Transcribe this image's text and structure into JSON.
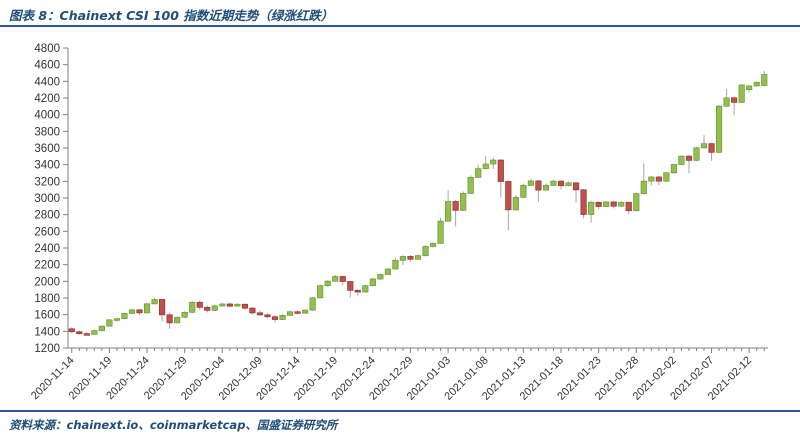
{
  "header": {
    "title": "图表 8：Chainext CSI 100 指数近期走势（绿涨红跌）"
  },
  "footer": {
    "source": "资料来源：chainext.io、coinmarketcap、国盛证券研究所"
  },
  "colors": {
    "title_blue": "#1F4E79",
    "rule_blue": "#2F5597",
    "up_green": "#92C050",
    "up_green_border": "#6E9A36",
    "down_red": "#C0504D",
    "down_red_border": "#943634",
    "wick_gray": "#A6A6A6",
    "axis_gray": "#808080",
    "label_gray": "#333333"
  },
  "chart_data": {
    "type": "candlestick",
    "title": "Chainext CSI 100 指数近期走势",
    "legend_note": "绿涨红跌 (green = up, red = down)",
    "grid": "off",
    "ylim": [
      1200,
      4800
    ],
    "ytick_step": 200,
    "y_tick_labels": [
      "1200",
      "1400",
      "1600",
      "1800",
      "2000",
      "2200",
      "2400",
      "2600",
      "2800",
      "3000",
      "3200",
      "3400",
      "3600",
      "3800",
      "4000",
      "4200",
      "4400",
      "4600",
      "4800"
    ],
    "x_label_every": 5,
    "x_tick_labels": [
      "2020-11-14",
      "2020-11-19",
      "2020-11-24",
      "2020-11-29",
      "2020-12-04",
      "2020-12-09",
      "2020-12-14",
      "2020-12-19",
      "2020-12-24",
      "2020-12-29",
      "2021-01-03",
      "2021-01-08",
      "2021-01-13",
      "2021-01-18",
      "2021-01-23",
      "2021-01-28",
      "2021-02-02",
      "2021-02-07",
      "2021-02-12"
    ],
    "dates": [
      "2020-11-14",
      "2020-11-15",
      "2020-11-16",
      "2020-11-17",
      "2020-11-18",
      "2020-11-19",
      "2020-11-20",
      "2020-11-21",
      "2020-11-22",
      "2020-11-23",
      "2020-11-24",
      "2020-11-25",
      "2020-11-26",
      "2020-11-27",
      "2020-11-28",
      "2020-11-29",
      "2020-11-30",
      "2020-12-01",
      "2020-12-02",
      "2020-12-03",
      "2020-12-04",
      "2020-12-05",
      "2020-12-06",
      "2020-12-07",
      "2020-12-08",
      "2020-12-09",
      "2020-12-10",
      "2020-12-11",
      "2020-12-12",
      "2020-12-13",
      "2020-12-14",
      "2020-12-15",
      "2020-12-16",
      "2020-12-17",
      "2020-12-18",
      "2020-12-19",
      "2020-12-20",
      "2020-12-21",
      "2020-12-22",
      "2020-12-23",
      "2020-12-24",
      "2020-12-25",
      "2020-12-26",
      "2020-12-27",
      "2020-12-28",
      "2020-12-29",
      "2020-12-30",
      "2020-12-31",
      "2021-01-01",
      "2021-01-02",
      "2021-01-03",
      "2021-01-04",
      "2021-01-05",
      "2021-01-06",
      "2021-01-07",
      "2021-01-08",
      "2021-01-09",
      "2021-01-10",
      "2021-01-11",
      "2021-01-12",
      "2021-01-13",
      "2021-01-14",
      "2021-01-15",
      "2021-01-16",
      "2021-01-17",
      "2021-01-18",
      "2021-01-19",
      "2021-01-20",
      "2021-01-21",
      "2021-01-22",
      "2021-01-23",
      "2021-01-24",
      "2021-01-25",
      "2021-01-26",
      "2021-01-27",
      "2021-01-28",
      "2021-01-29",
      "2021-01-30",
      "2021-01-31",
      "2021-02-01",
      "2021-02-02",
      "2021-02-03",
      "2021-02-04",
      "2021-02-05",
      "2021-02-06",
      "2021-02-07",
      "2021-02-08",
      "2021-02-09",
      "2021-02-10",
      "2021-02-11",
      "2021-02-12",
      "2021-02-13",
      "2021-02-14"
    ],
    "ohlc": [
      [
        1430,
        1450,
        1380,
        1395
      ],
      [
        1395,
        1412,
        1362,
        1372
      ],
      [
        1372,
        1395,
        1350,
        1365
      ],
      [
        1365,
        1420,
        1358,
        1408
      ],
      [
        1408,
        1470,
        1400,
        1462
      ],
      [
        1462,
        1545,
        1455,
        1538
      ],
      [
        1538,
        1562,
        1512,
        1552
      ],
      [
        1552,
        1625,
        1545,
        1615
      ],
      [
        1615,
        1670,
        1605,
        1658
      ],
      [
        1658,
        1666,
        1598,
        1622
      ],
      [
        1622,
        1740,
        1615,
        1730
      ],
      [
        1730,
        1800,
        1722,
        1782
      ],
      [
        1782,
        1792,
        1520,
        1598
      ],
      [
        1598,
        1622,
        1430,
        1502
      ],
      [
        1502,
        1580,
        1495,
        1568
      ],
      [
        1568,
        1640,
        1560,
        1628
      ],
      [
        1628,
        1762,
        1620,
        1748
      ],
      [
        1748,
        1772,
        1658,
        1688
      ],
      [
        1688,
        1712,
        1625,
        1652
      ],
      [
        1652,
        1722,
        1645,
        1705
      ],
      [
        1705,
        1742,
        1690,
        1728
      ],
      [
        1728,
        1746,
        1688,
        1702
      ],
      [
        1702,
        1736,
        1695,
        1725
      ],
      [
        1725,
        1732,
        1655,
        1678
      ],
      [
        1678,
        1692,
        1600,
        1622
      ],
      [
        1622,
        1652,
        1585,
        1598
      ],
      [
        1598,
        1616,
        1558,
        1575
      ],
      [
        1575,
        1590,
        1508,
        1542
      ],
      [
        1542,
        1602,
        1535,
        1592
      ],
      [
        1592,
        1646,
        1585,
        1635
      ],
      [
        1635,
        1652,
        1603,
        1618
      ],
      [
        1618,
        1662,
        1610,
        1655
      ],
      [
        1655,
        1815,
        1648,
        1802
      ],
      [
        1802,
        1965,
        1795,
        1948
      ],
      [
        1948,
        2015,
        1935,
        2002
      ],
      [
        2002,
        2076,
        1995,
        2058
      ],
      [
        2058,
        2066,
        1958,
        1998
      ],
      [
        1998,
        2006,
        1805,
        1892
      ],
      [
        1892,
        1906,
        1828,
        1872
      ],
      [
        1872,
        1960,
        1865,
        1948
      ],
      [
        1948,
        2042,
        1940,
        2028
      ],
      [
        2028,
        2092,
        2020,
        2082
      ],
      [
        2082,
        2162,
        2075,
        2148
      ],
      [
        2148,
        2286,
        2140,
        2252
      ],
      [
        2252,
        2312,
        2198,
        2298
      ],
      [
        2298,
        2316,
        2238,
        2265
      ],
      [
        2265,
        2322,
        2255,
        2308
      ],
      [
        2308,
        2432,
        2300,
        2418
      ],
      [
        2418,
        2468,
        2408,
        2455
      ],
      [
        2455,
        2762,
        2448,
        2722
      ],
      [
        2722,
        3092,
        2715,
        2958
      ],
      [
        2958,
        2976,
        2658,
        2852
      ],
      [
        2852,
        3078,
        2845,
        3055
      ],
      [
        3055,
        3272,
        3046,
        3248
      ],
      [
        3248,
        3396,
        3240,
        3352
      ],
      [
        3352,
        3506,
        3344,
        3408
      ],
      [
        3408,
        3482,
        3348,
        3455
      ],
      [
        3455,
        3466,
        3008,
        3198
      ],
      [
        3198,
        3212,
        2615,
        2858
      ],
      [
        2858,
        3032,
        2850,
        3008
      ],
      [
        3008,
        3172,
        3000,
        3152
      ],
      [
        3152,
        3232,
        3144,
        3205
      ],
      [
        3205,
        3216,
        2955,
        3095
      ],
      [
        3095,
        3172,
        3086,
        3152
      ],
      [
        3152,
        3216,
        3145,
        3202
      ],
      [
        3202,
        3214,
        3104,
        3148
      ],
      [
        3148,
        3196,
        3140,
        3182
      ],
      [
        3182,
        3192,
        2945,
        3098
      ],
      [
        3098,
        3106,
        2756,
        2802
      ],
      [
        2802,
        2966,
        2704,
        2948
      ],
      [
        2948,
        2962,
        2864,
        2898
      ],
      [
        2898,
        2963,
        2890,
        2952
      ],
      [
        2952,
        2966,
        2874,
        2902
      ],
      [
        2902,
        2959,
        2894,
        2948
      ],
      [
        2948,
        2956,
        2804,
        2848
      ],
      [
        2848,
        3066,
        2840,
        3052
      ],
      [
        3052,
        3416,
        3044,
        3202
      ],
      [
        3202,
        3266,
        3150,
        3252
      ],
      [
        3252,
        3263,
        3154,
        3202
      ],
      [
        3202,
        3312,
        3195,
        3302
      ],
      [
        3302,
        3414,
        3295,
        3402
      ],
      [
        3402,
        3512,
        3394,
        3502
      ],
      [
        3502,
        3514,
        3296,
        3452
      ],
      [
        3452,
        3616,
        3445,
        3602
      ],
      [
        3602,
        3756,
        3594,
        3652
      ],
      [
        3652,
        3663,
        3446,
        3548
      ],
      [
        3548,
        4118,
        3540,
        4102
      ],
      [
        4102,
        4306,
        4094,
        4202
      ],
      [
        4202,
        4214,
        3996,
        4148
      ],
      [
        4148,
        4368,
        4140,
        4355
      ],
      [
        4300,
        4352,
        4270,
        4345
      ],
      [
        4345,
        4400,
        4336,
        4388
      ],
      [
        4350,
        4528,
        4342,
        4482
      ]
    ]
  }
}
